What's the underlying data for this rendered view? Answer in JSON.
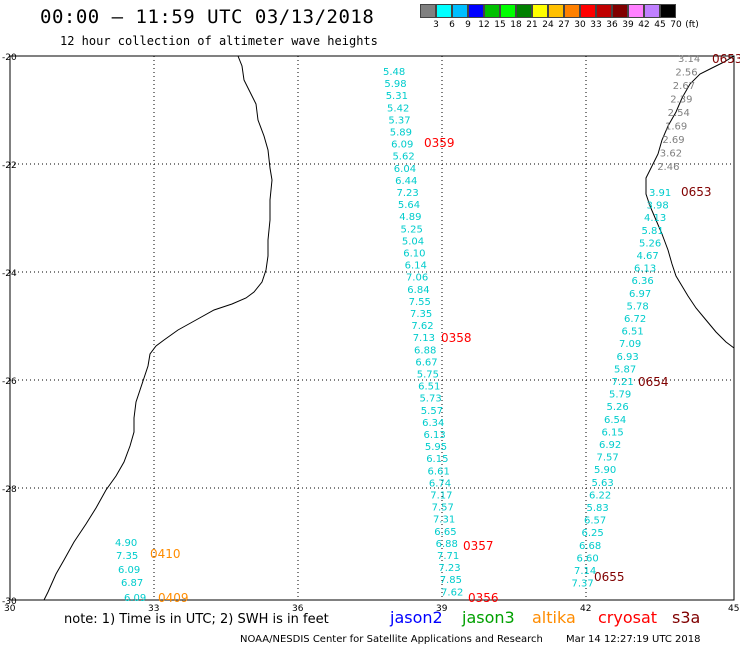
{
  "header": {
    "title": "00:00 – 11:59 UTC 03/13/2018",
    "subtitle": "12 hour collection of altimeter wave heights"
  },
  "legend": {
    "colors": [
      "#808080",
      "#00ffff",
      "#00bfff",
      "#0000ff",
      "#00c000",
      "#00ff00",
      "#008000",
      "#ffff00",
      "#ffc000",
      "#ff8000",
      "#ff0000",
      "#c00000",
      "#800000",
      "#ff80ff",
      "#c080ff",
      "#000000"
    ],
    "labels": [
      "3",
      "6",
      "9",
      "12",
      "15",
      "18",
      "21",
      "24",
      "27",
      "30",
      "33",
      "36",
      "39",
      "42",
      "45",
      "70",
      "(ft)"
    ]
  },
  "map": {
    "lat_ticks": [
      "-20",
      "-22",
      "-24",
      "-26",
      "-28",
      "-30"
    ],
    "lon_ticks": [
      "30",
      "33",
      "36",
      "39",
      "42",
      "45"
    ]
  },
  "wave_colors": {
    "jason3": "#00cccc",
    "s3a": "#808080",
    "cryosat": "#800000",
    "jason2_time": "#ff0000",
    "altika": "#ff8c00"
  },
  "tracks": {
    "jason3_track1": [
      "5.48",
      "5.98",
      "5.31",
      "5.42",
      "5.37",
      "5.89",
      "6.09",
      "5.62",
      "6.04",
      "6.44",
      "7.23",
      "5.64",
      "4.89",
      "5.25",
      "5.04",
      "6.10",
      "6.14",
      "7.06",
      "6.84",
      "7.55",
      "7.35",
      "7.62",
      "7.13",
      "6.88",
      "6.67",
      "5.75",
      "6.51",
      "5.73",
      "5.57",
      "6.34",
      "6.13",
      "5.95",
      "6.15",
      "6.61",
      "6.74",
      "7.17",
      "7.57",
      "7.31",
      "6.65",
      "6.88",
      "7.71",
      "7.23",
      "7.85",
      "7.62"
    ],
    "jason3_track1_times": [
      "0359",
      "0358",
      "0357",
      "0356"
    ],
    "s3a_track": [
      "3.14",
      "2.56",
      "2.67",
      "2.39",
      "2.54",
      "1.69",
      "2.69",
      "3.62",
      "2.46"
    ],
    "cryosat_track": [
      "0653",
      "0653",
      "0654",
      "0655"
    ],
    "jason3_track2": [
      "3.91",
      "3.98",
      "4.13",
      "5.81",
      "5.26",
      "4.67",
      "6.13",
      "6.36",
      "6.97",
      "5.78",
      "6.72",
      "6.51",
      "7.09",
      "6.93",
      "5.87",
      "7.21",
      "5.79",
      "5.26",
      "6.54",
      "6.15",
      "6.92",
      "7.57",
      "5.90",
      "5.63",
      "6.22",
      "5.83",
      "6.57",
      "6.25",
      "6.68",
      "6.60",
      "7.14",
      "7.37"
    ],
    "coast_track": [
      "4.90",
      "7.35",
      "6.09",
      "6.87",
      "6.09"
    ],
    "coast_times": [
      "0410",
      "0409"
    ]
  },
  "footer": {
    "note": "note: 1) Time is in UTC; 2) SWH is in feet",
    "satellites": [
      {
        "name": "jason2",
        "color": "#0000ff"
      },
      {
        "name": "jason3",
        "color": "#00a000"
      },
      {
        "name": "altika",
        "color": "#ff8c00"
      },
      {
        "name": "cryosat",
        "color": "#ff0000"
      },
      {
        "name": "s3a",
        "color": "#800000"
      }
    ],
    "credit": "NOAA/NESDIS Center for Satellite Applications and Research",
    "timestamp": "Mar 14 12:27:19 UTC 2018"
  }
}
